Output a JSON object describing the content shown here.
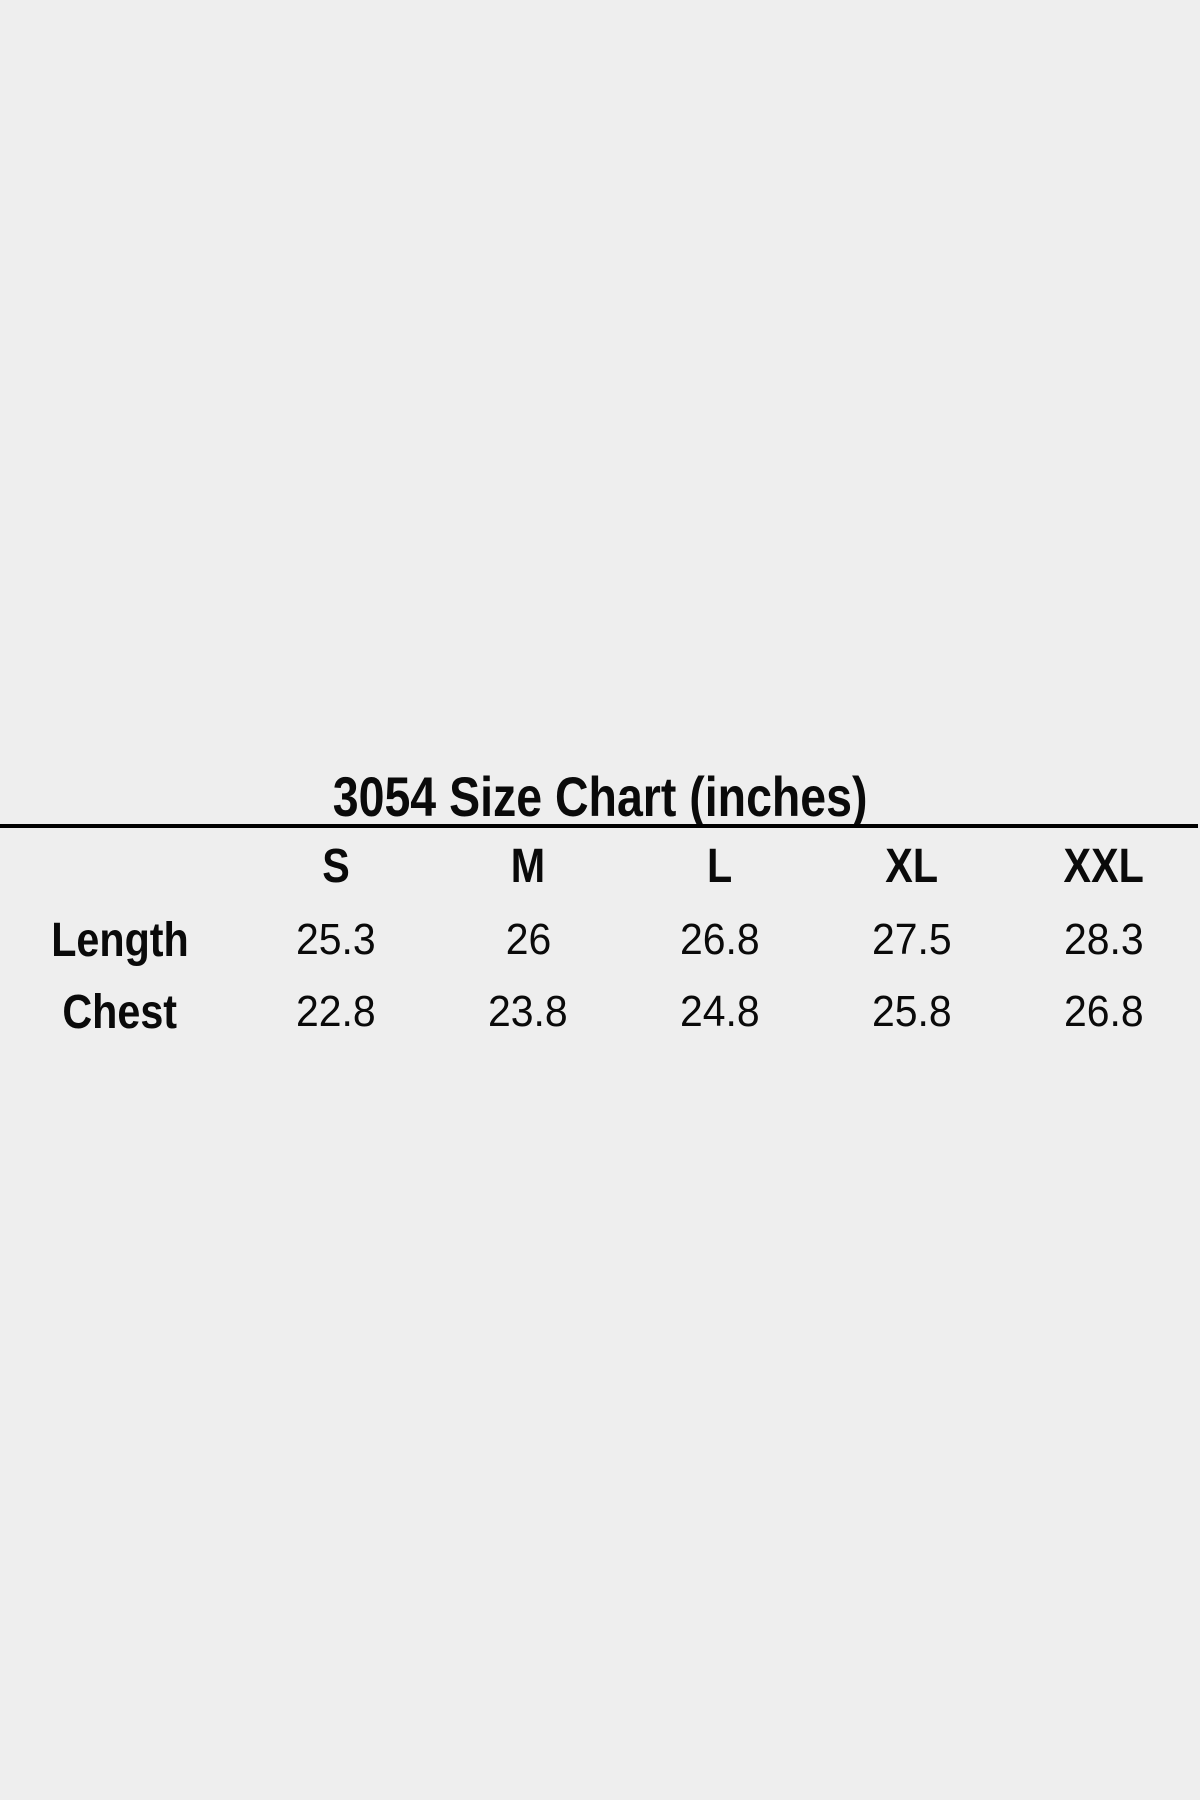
{
  "page": {
    "background_color": "#eeeeee",
    "text_color": "#0a0a0a",
    "divider_color": "#000000"
  },
  "size_chart": {
    "title": "3054 Size Chart (inches)",
    "columns": [
      "S",
      "M",
      "L",
      "XL",
      "XXL"
    ],
    "rows": [
      {
        "label": "Length",
        "values": [
          "25.3",
          "26",
          "26.8",
          "27.5",
          "28.3"
        ]
      },
      {
        "label": "Chest",
        "values": [
          "22.8",
          "23.8",
          "24.8",
          "25.8",
          "26.8"
        ]
      }
    ]
  },
  "chart_data": {
    "type": "table",
    "title": "3054 Size Chart (inches)",
    "units": "inches",
    "columns": [
      "",
      "S",
      "M",
      "L",
      "XL",
      "XXL"
    ],
    "rows": [
      [
        "Length",
        25.3,
        26,
        26.8,
        27.5,
        28.3
      ],
      [
        "Chest",
        22.8,
        23.8,
        24.8,
        25.8,
        26.8
      ]
    ]
  }
}
